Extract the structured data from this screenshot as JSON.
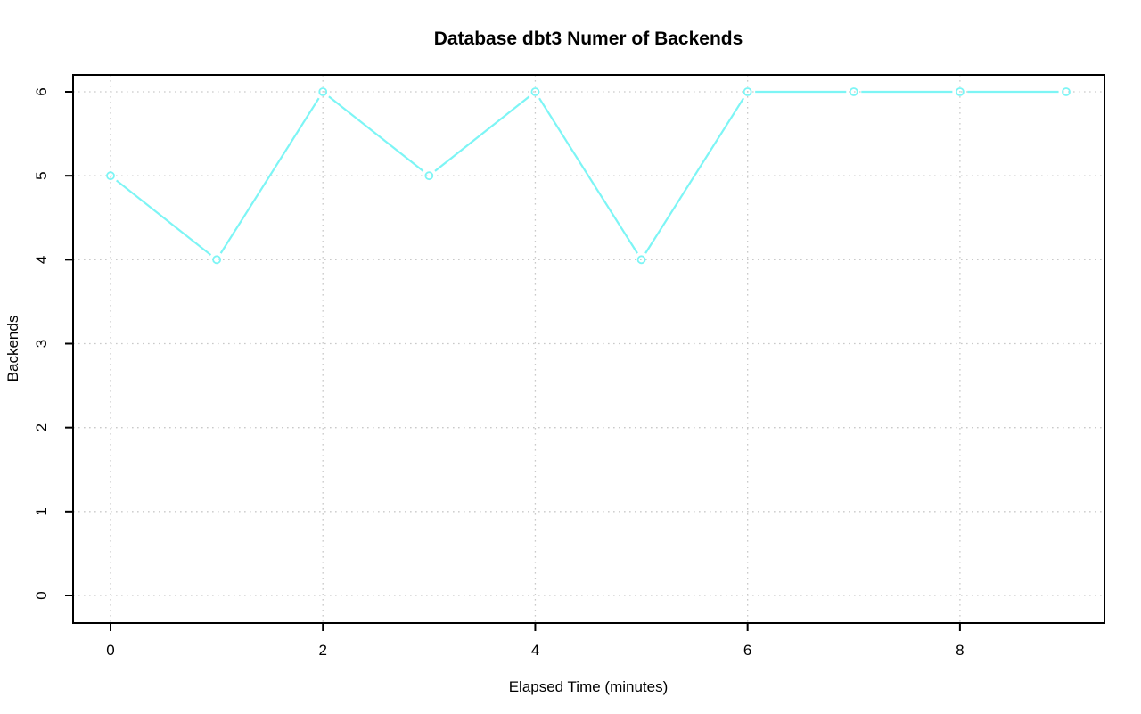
{
  "window": {
    "background": "#ffffff"
  },
  "chart_data": {
    "type": "line",
    "title": "Database dbt3 Numer of Backends",
    "xlabel": "Elapsed Time (minutes)",
    "ylabel": "Backends",
    "x": [
      0,
      1,
      2,
      3,
      4,
      5,
      6,
      7,
      8,
      9
    ],
    "series": [
      {
        "name": "backends",
        "values": [
          5,
          4,
          6,
          5,
          6,
          4,
          6,
          6,
          6,
          6
        ]
      }
    ],
    "xticks": [
      "0",
      "2",
      "4",
      "6",
      "8"
    ],
    "xtick_values": [
      0,
      2,
      4,
      6,
      8
    ],
    "yticks": [
      "0",
      "1",
      "2",
      "3",
      "4",
      "5",
      "6"
    ],
    "ytick_values": [
      0,
      1,
      2,
      3,
      4,
      5,
      6
    ],
    "xlim": [
      0,
      9
    ],
    "ylim": [
      0,
      6
    ],
    "grid": "dotted",
    "legend": "none",
    "line_color": "#7df5f5",
    "marker": "open-circle",
    "marker_color": "#7df5f5",
    "grid_color": "#c9c9c9",
    "axis_color": "#000000"
  }
}
